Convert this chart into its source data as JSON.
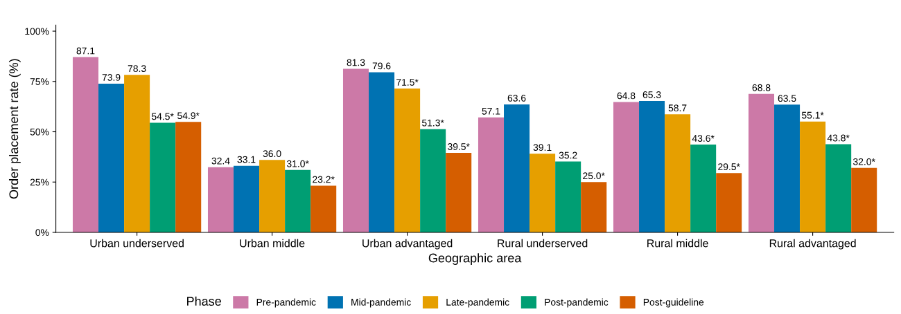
{
  "chart_data": {
    "type": "bar",
    "xlabel": "Geographic area",
    "ylabel": "Order placement rate (%)",
    "legend_title": "Phase",
    "legend": "bottom",
    "grid": false,
    "categories": [
      "Urban underserved",
      "Urban middle",
      "Urban advantaged",
      "Rural underserved",
      "Rural middle",
      "Rural advantaged"
    ],
    "ylim": [
      0,
      103
    ],
    "yticks": [
      {
        "value": 0,
        "label": "0%"
      },
      {
        "value": 25,
        "label": "25%"
      },
      {
        "value": 50,
        "label": "50%"
      },
      {
        "value": 75,
        "label": "75%"
      },
      {
        "value": 100,
        "label": "100%"
      }
    ],
    "series": [
      {
        "name": "Pre-pandemic",
        "color": "#cc79a7",
        "values": [
          87.1,
          32.4,
          81.3,
          57.1,
          64.8,
          68.8
        ],
        "value_labels": [
          "87.1",
          "32.4",
          "81.3",
          "57.1",
          "64.8",
          "68.8"
        ]
      },
      {
        "name": "Mid-pandemic",
        "color": "#0072b2",
        "values": [
          73.9,
          33.1,
          79.6,
          63.6,
          65.3,
          63.5
        ],
        "value_labels": [
          "73.9",
          "33.1",
          "79.6",
          "63.6",
          "65.3",
          "63.5"
        ]
      },
      {
        "name": "Late-pandemic",
        "color": "#e69f00",
        "values": [
          78.3,
          36.0,
          71.5,
          39.1,
          58.7,
          55.1
        ],
        "value_labels": [
          "78.3",
          "36.0",
          "71.5*",
          "39.1",
          "58.7",
          "55.1*"
        ]
      },
      {
        "name": "Post-pandemic",
        "color": "#009e73",
        "values": [
          54.5,
          31.0,
          51.3,
          35.2,
          43.6,
          43.8
        ],
        "value_labels": [
          "54.5*",
          "31.0*",
          "51.3*",
          "35.2",
          "43.6*",
          "43.8*"
        ]
      },
      {
        "name": "Post-guideline",
        "color": "#d55e00",
        "values": [
          54.9,
          23.2,
          39.5,
          25.0,
          29.5,
          32.0
        ],
        "value_labels": [
          "54.9*",
          "23.2*",
          "39.5*",
          "25.0*",
          "29.5*",
          "32.0*"
        ]
      }
    ]
  }
}
